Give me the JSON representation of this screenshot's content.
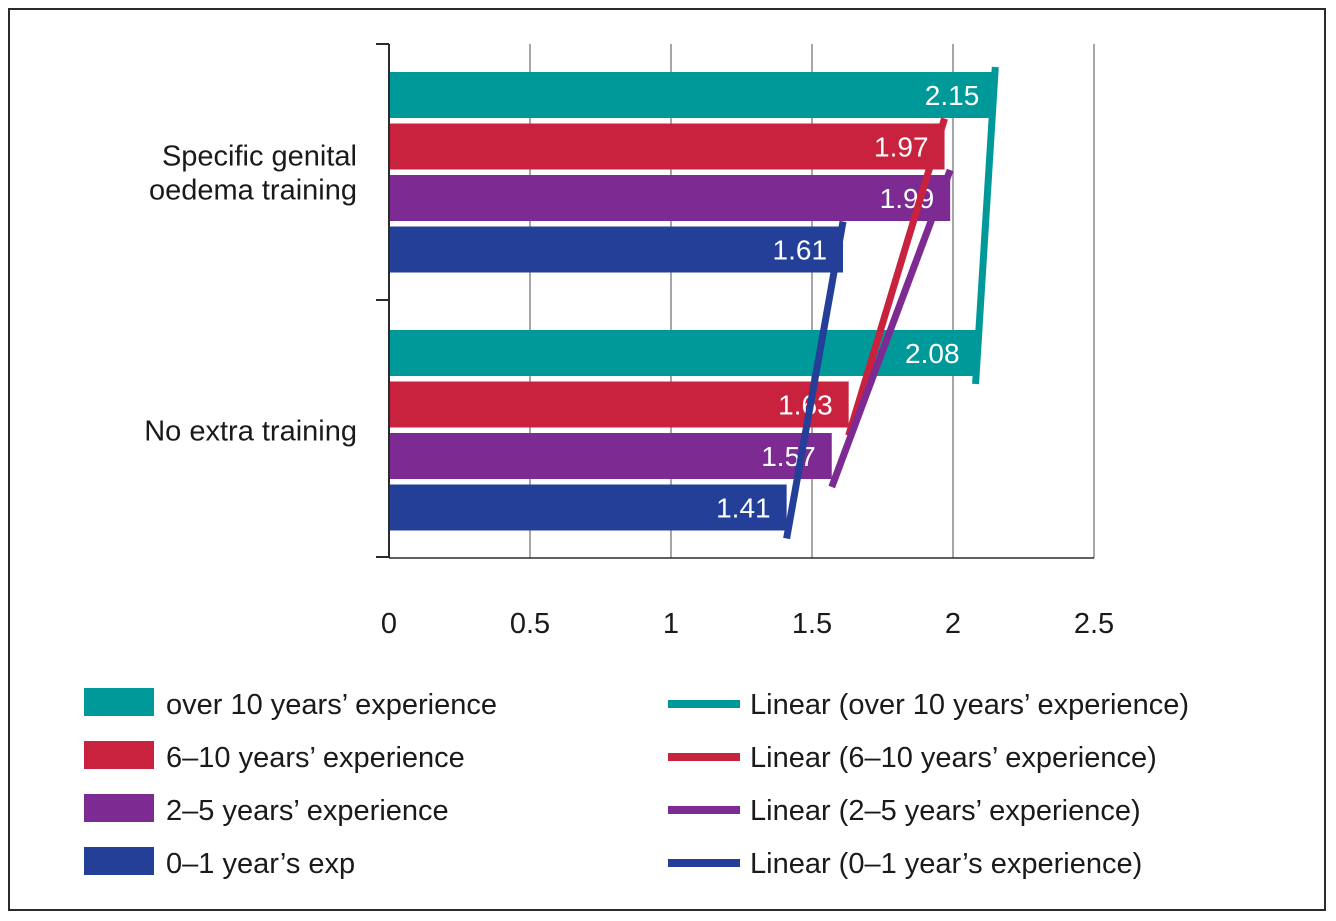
{
  "chart_data": {
    "type": "bar",
    "orientation": "horizontal",
    "categories": [
      "Specific genital oedema training",
      "No extra training"
    ],
    "category_lines": [
      [
        "Specific genital",
        "oedema training"
      ],
      [
        "No extra training"
      ]
    ],
    "series": [
      {
        "name": "over 10 years’ experience",
        "color": "#00999a",
        "values": [
          2.15,
          2.08
        ],
        "labels": [
          "2.15",
          "2.08"
        ]
      },
      {
        "name": "6–10 years’ experience",
        "color": "#c8223f",
        "values": [
          1.97,
          1.63
        ],
        "labels": [
          "1.97",
          "1.63"
        ]
      },
      {
        "name": "2–5 years’ experience",
        "color": "#7d2a92",
        "values": [
          1.99,
          1.57
        ],
        "labels": [
          "1.99",
          "1.57"
        ]
      },
      {
        "name": "0–1 year’s exp",
        "color": "#233f98",
        "values": [
          1.61,
          1.41
        ],
        "labels": [
          "1.61",
          "1.41"
        ]
      }
    ],
    "trendlines": [
      {
        "name": "Linear (over 10 years’ experience)",
        "color": "#00999a",
        "values": [
          2.15,
          2.08
        ]
      },
      {
        "name": "Linear (6–10 years’ experience)",
        "color": "#c8223f",
        "values": [
          1.97,
          1.63
        ]
      },
      {
        "name": "Linear (2–5 years’ experience)",
        "color": "#7d2a92",
        "values": [
          1.99,
          1.57
        ]
      },
      {
        "name": "Linear (0–1 year’s experience)",
        "color": "#233f98",
        "values": [
          1.61,
          1.41
        ]
      }
    ],
    "xlim": [
      0,
      2.5
    ],
    "xticks": [
      0,
      0.5,
      1,
      1.5,
      2,
      2.5
    ],
    "xtick_labels": [
      "0",
      "0.5",
      "1",
      "1.5",
      "2",
      "2.5"
    ],
    "grid": "vertical",
    "legend": "bottom"
  }
}
